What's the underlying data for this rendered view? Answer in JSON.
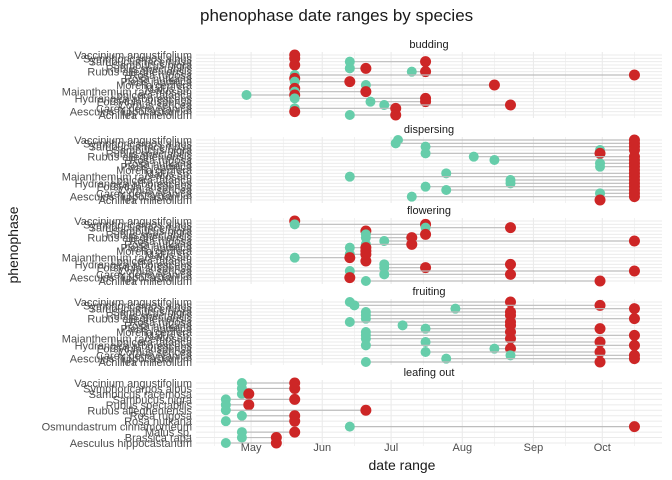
{
  "chart_data": {
    "type": "dumbbell",
    "title": "phenophase date ranges by species",
    "xlabel": "date range",
    "ylabel": "phenophase",
    "x_ticks": [
      "May",
      "Jun",
      "Jul",
      "Aug",
      "Sep",
      "Oct"
    ],
    "x_tick_dates": [
      "2020-05-01",
      "2020-06-01",
      "2020-07-01",
      "2020-08-01",
      "2020-09-01",
      "2020-10-01"
    ],
    "xlim": [
      "2020-04-07",
      "2020-10-27"
    ],
    "grid": true,
    "colors": {
      "start": "#66CDAA",
      "end": "#CD2626",
      "segment": "#BDBDBD",
      "grid": "#EBEBEB"
    },
    "species": [
      "Vaccinium angustifolium",
      "Symphoricarpos albus",
      "Sambucus racemosa",
      "Sambucus nigra",
      "Rubus spectabilis",
      "Rubus allegheniensis",
      "Rosa rugosa",
      "Rosa nutkana",
      "Pieris japonica",
      "Morella cerifera",
      "Malus sp.",
      "Maianthemum racemosum",
      "Lonicera tatarica",
      "Hydrangea arborescens",
      "Forsythia suspensa",
      "Cornus sericea",
      "Carex pensylvanica",
      "Aesculus hippocastanum",
      "Achillea millefolium"
    ],
    "panels": [
      {
        "name": "budding",
        "items": [
          {
            "species_index": 0,
            "start": "2020-05-20",
            "end": "2020-05-20"
          },
          {
            "species_index": 1,
            "start": "2020-05-20",
            "end": "2020-05-20"
          },
          {
            "species_index": 2,
            "start": "2020-06-13",
            "end": "2020-07-16"
          },
          {
            "species_index": 3,
            "start": "2020-05-20",
            "end": "2020-05-20"
          },
          {
            "species_index": 4,
            "start": "2020-06-13",
            "end": "2020-06-20"
          },
          {
            "species_index": 5,
            "start": "2020-07-10",
            "end": "2020-07-16"
          },
          {
            "species_index": 6,
            "start": "2020-05-20",
            "end": "2020-10-15"
          },
          {
            "species_index": 7,
            "start": "2020-05-20",
            "end": "2020-05-20"
          },
          {
            "species_index": 8,
            "start": "2020-05-20",
            "end": "2020-06-13"
          },
          {
            "species_index": 9,
            "start": "2020-06-20",
            "end": "2020-08-15"
          },
          {
            "species_index": 10,
            "start": "2020-05-20",
            "end": "2020-05-20"
          },
          {
            "species_index": 11,
            "start": "2020-05-20",
            "end": "2020-06-20"
          },
          {
            "species_index": 12,
            "start": "2020-04-29",
            "end": "2020-05-20"
          },
          {
            "species_index": 13,
            "start": "2020-05-20",
            "end": "2020-07-16"
          },
          {
            "species_index": 14,
            "start": "2020-06-22",
            "end": "2020-07-16"
          },
          {
            "species_index": 15,
            "start": "2020-06-28",
            "end": "2020-08-22"
          },
          {
            "species_index": 16,
            "start": "2020-05-20",
            "end": "2020-07-03"
          },
          {
            "species_index": 17,
            "start": "2020-05-20",
            "end": "2020-05-20"
          },
          {
            "species_index": 18,
            "start": "2020-06-13",
            "end": "2020-07-03"
          }
        ]
      },
      {
        "name": "dispersing",
        "items": [
          {
            "species_index": 0,
            "start": "2020-07-04",
            "end": "2020-10-15"
          },
          {
            "species_index": 1,
            "start": "2020-07-03",
            "end": "2020-10-15"
          },
          {
            "species_index": 2,
            "start": "2020-07-16",
            "end": "2020-10-15"
          },
          {
            "species_index": 3,
            "start": "2020-09-30",
            "end": "2020-10-15"
          },
          {
            "species_index": 4,
            "start": "2020-07-16",
            "end": "2020-09-30"
          },
          {
            "species_index": 5,
            "start": "2020-08-06",
            "end": "2020-10-15"
          },
          {
            "species_index": 6,
            "start": "2020-08-15",
            "end": "2020-10-15"
          },
          {
            "species_index": 7,
            "start": "2020-09-30",
            "end": "2020-10-15"
          },
          {
            "species_index": 8,
            "start": "2020-09-30",
            "end": "2020-10-15"
          },
          {
            "species_index": 9,
            "start": "2020-10-15",
            "end": "2020-10-15"
          },
          {
            "species_index": 10,
            "start": "2020-07-25",
            "end": "2020-10-15"
          },
          {
            "species_index": 11,
            "start": "2020-06-13",
            "end": "2020-10-15"
          },
          {
            "species_index": 12,
            "start": "2020-08-22",
            "end": "2020-10-15"
          },
          {
            "species_index": 13,
            "start": "2020-08-22",
            "end": "2020-10-15"
          },
          {
            "species_index": 14,
            "start": "2020-07-16",
            "end": "2020-10-15"
          },
          {
            "species_index": 15,
            "start": "2020-07-25",
            "end": "2020-10-15"
          },
          {
            "species_index": 16,
            "start": "2020-09-30",
            "end": "2020-10-15"
          },
          {
            "species_index": 17,
            "start": "2020-07-10",
            "end": "2020-10-15"
          },
          {
            "species_index": 18,
            "start": "2020-09-30",
            "end": "2020-09-30"
          }
        ]
      },
      {
        "name": "flowering",
        "items": [
          {
            "species_index": 0,
            "start": "2020-05-20",
            "end": "2020-05-20"
          },
          {
            "species_index": 1,
            "start": "2020-05-20",
            "end": "2020-07-16"
          },
          {
            "species_index": 2,
            "start": "2020-07-16",
            "end": "2020-08-22"
          },
          {
            "species_index": 3,
            "start": "2020-06-20",
            "end": "2020-06-20"
          },
          {
            "species_index": 4,
            "start": "2020-06-20",
            "end": "2020-07-16"
          },
          {
            "species_index": 5,
            "start": "2020-06-20",
            "end": "2020-07-10"
          },
          {
            "species_index": 6,
            "start": "2020-06-28",
            "end": "2020-10-15"
          },
          {
            "species_index": 7,
            "start": "2020-06-20",
            "end": "2020-07-10"
          },
          {
            "species_index": 8,
            "start": "2020-06-13",
            "end": "2020-06-20"
          },
          {
            "species_index": 9,
            "start": "2020-06-20",
            "end": "2020-06-20"
          },
          {
            "species_index": 10,
            "start": "2020-06-13",
            "end": "2020-06-20"
          },
          {
            "species_index": 11,
            "start": "2020-05-20",
            "end": "2020-06-13"
          },
          {
            "species_index": 12,
            "start": "2020-06-20",
            "end": "2020-06-20"
          },
          {
            "species_index": 13,
            "start": "2020-06-28",
            "end": "2020-08-22"
          },
          {
            "species_index": 14,
            "start": "2020-06-28",
            "end": "2020-07-16"
          },
          {
            "species_index": 15,
            "start": "2020-06-13",
            "end": "2020-10-15"
          },
          {
            "species_index": 16,
            "start": "2020-06-28",
            "end": "2020-08-22"
          },
          {
            "species_index": 17,
            "start": "2020-06-13",
            "end": "2020-06-13"
          },
          {
            "species_index": 18,
            "start": "2020-06-20",
            "end": "2020-09-30"
          }
        ]
      },
      {
        "name": "fruiting",
        "items": [
          {
            "species_index": 0,
            "start": "2020-06-13",
            "end": "2020-08-22"
          },
          {
            "species_index": 1,
            "start": "2020-06-15",
            "end": "2020-09-30"
          },
          {
            "species_index": 2,
            "start": "2020-07-29",
            "end": "2020-10-15"
          },
          {
            "species_index": 3,
            "start": "2020-06-20",
            "end": "2020-08-22"
          },
          {
            "species_index": 4,
            "start": "2020-06-20",
            "end": "2020-08-22"
          },
          {
            "species_index": 5,
            "start": "2020-06-20",
            "end": "2020-10-15"
          },
          {
            "species_index": 6,
            "start": "2020-06-13",
            "end": "2020-08-22"
          },
          {
            "species_index": 7,
            "start": "2020-07-06",
            "end": "2020-08-22"
          },
          {
            "species_index": 8,
            "start": "2020-07-16",
            "end": "2020-09-30"
          },
          {
            "species_index": 9,
            "start": "2020-06-20",
            "end": "2020-08-22"
          },
          {
            "species_index": 10,
            "start": "2020-06-20",
            "end": "2020-10-15"
          },
          {
            "species_index": 11,
            "start": "2020-06-20",
            "end": "2020-08-22"
          },
          {
            "species_index": 12,
            "start": "2020-07-16",
            "end": "2020-09-30"
          },
          {
            "species_index": 13,
            "start": "2020-06-20",
            "end": "2020-10-15"
          },
          {
            "species_index": 14,
            "start": "2020-08-15",
            "end": "2020-08-22"
          },
          {
            "species_index": 15,
            "start": "2020-07-16",
            "end": "2020-09-30"
          },
          {
            "species_index": 16,
            "start": "2020-08-22",
            "end": "2020-10-15"
          },
          {
            "species_index": 17,
            "start": "2020-07-25",
            "end": "2020-10-15"
          },
          {
            "species_index": 18,
            "start": "2020-06-20",
            "end": "2020-09-30"
          }
        ]
      },
      {
        "name": "leafing out",
        "species": [
          "Vaccinium angustifolium",
          "Symphoricarpos albus",
          "Sambucus racemosa",
          "Sambucus nigra",
          "Rubus spectabilis",
          "Rubus allegheniensis",
          "Rosa rugosa",
          "Rosa nutkana",
          "Osmundastrum cinnamomeum",
          "Malus sp.",
          "Brassica rapa",
          "Aesculus hippocastanum"
        ],
        "items": [
          {
            "species_index": 0,
            "start": "2020-04-27",
            "end": "2020-05-20"
          },
          {
            "species_index": 1,
            "start": "2020-04-27",
            "end": "2020-05-20"
          },
          {
            "species_index": 2,
            "start": "2020-04-27",
            "end": "2020-04-30"
          },
          {
            "species_index": 3,
            "start": "2020-04-20",
            "end": "2020-05-20"
          },
          {
            "species_index": 4,
            "start": "2020-04-20",
            "end": "2020-04-30"
          },
          {
            "species_index": 5,
            "start": "2020-04-20",
            "end": "2020-06-20"
          },
          {
            "species_index": 6,
            "start": "2020-04-27",
            "end": "2020-05-20"
          },
          {
            "species_index": 7,
            "start": "2020-04-20",
            "end": "2020-05-20"
          },
          {
            "species_index": 8,
            "start": "2020-06-13",
            "end": "2020-10-15"
          },
          {
            "species_index": 9,
            "start": "2020-04-27",
            "end": "2020-05-20"
          },
          {
            "species_index": 10,
            "start": "2020-04-27",
            "end": "2020-05-12"
          },
          {
            "species_index": 11,
            "start": "2020-04-20",
            "end": "2020-05-12"
          }
        ]
      }
    ]
  }
}
